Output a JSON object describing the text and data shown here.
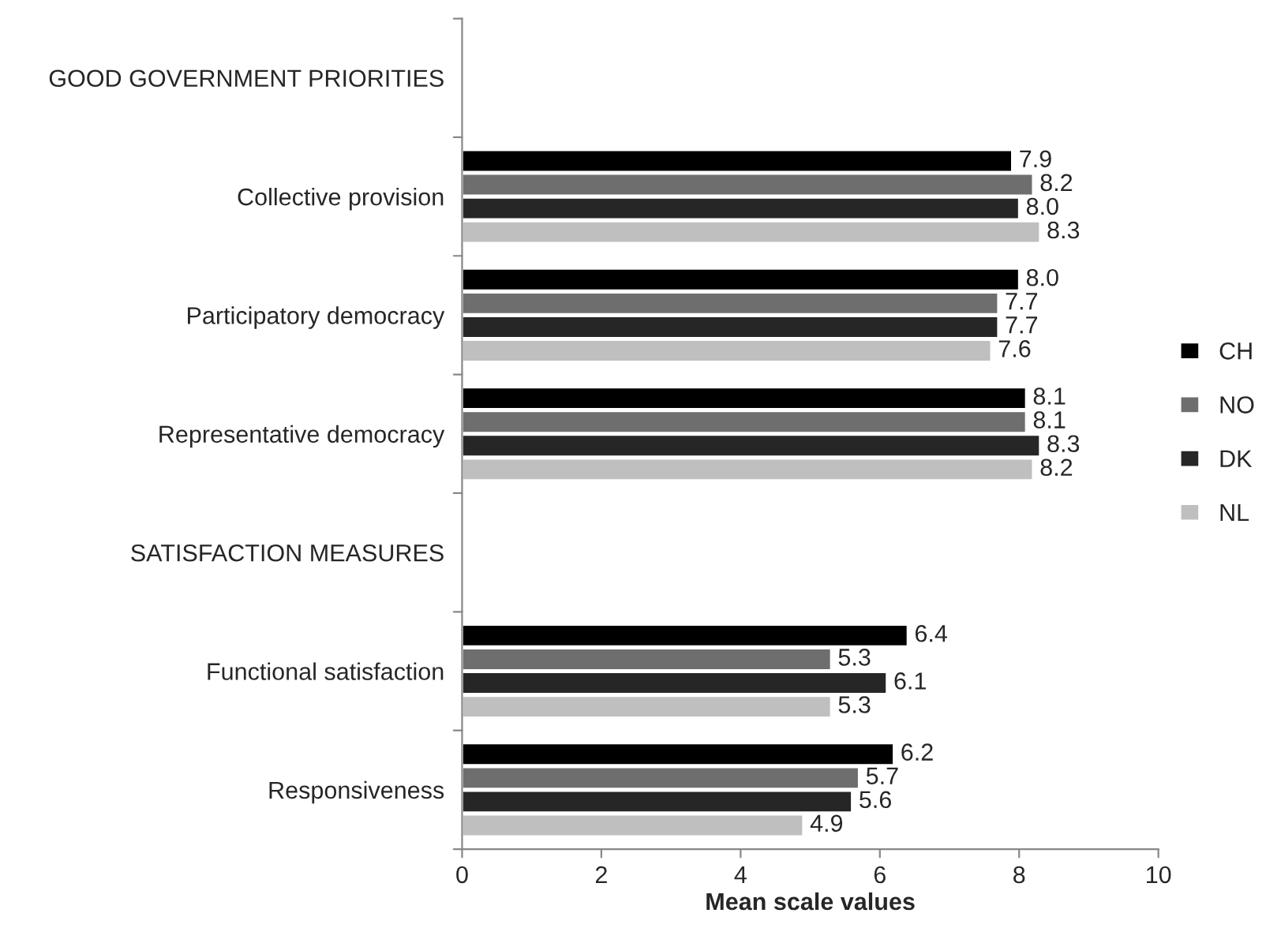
{
  "chart_data": {
    "type": "bar",
    "orientation": "horizontal",
    "xlabel": "Mean scale values",
    "categories": [
      "GOOD GOVERNMENT PRIORITIES",
      "Collective provision",
      "Participatory democracy",
      "Representative democracy",
      "SATISFACTION MEASURES",
      "Functional satisfaction",
      "Responsiveness"
    ],
    "series": [
      {
        "name": "CH",
        "color": "#000000",
        "values": [
          null,
          7.9,
          8.0,
          8.1,
          null,
          6.4,
          6.2
        ],
        "value_labels": [
          null,
          "7.9",
          "8.0",
          "8.1",
          null,
          "6.4",
          "6.2"
        ]
      },
      {
        "name": "NO",
        "color": "#6e6e6e",
        "values": [
          null,
          8.2,
          7.7,
          8.1,
          null,
          5.3,
          5.7
        ],
        "value_labels": [
          null,
          "8.2",
          "7.7",
          "8.1",
          null,
          "5.3",
          "5.7"
        ]
      },
      {
        "name": "DK",
        "color": "#262626",
        "values": [
          null,
          8.0,
          7.7,
          8.3,
          null,
          6.1,
          5.6
        ],
        "value_labels": [
          null,
          "8.0",
          "7.7",
          "8.3",
          null,
          "6.1",
          "5.6"
        ]
      },
      {
        "name": "NL",
        "color": "#bfbfbf",
        "values": [
          null,
          8.3,
          7.6,
          8.2,
          null,
          5.3,
          4.9
        ],
        "value_labels": [
          null,
          "8.3",
          "7.6",
          "8.2",
          null,
          "5.3",
          "4.9"
        ]
      }
    ],
    "xlim": [
      0,
      10
    ],
    "xticks": [
      0,
      2,
      4,
      6,
      8,
      10
    ],
    "legend": "right",
    "grid": false
  }
}
